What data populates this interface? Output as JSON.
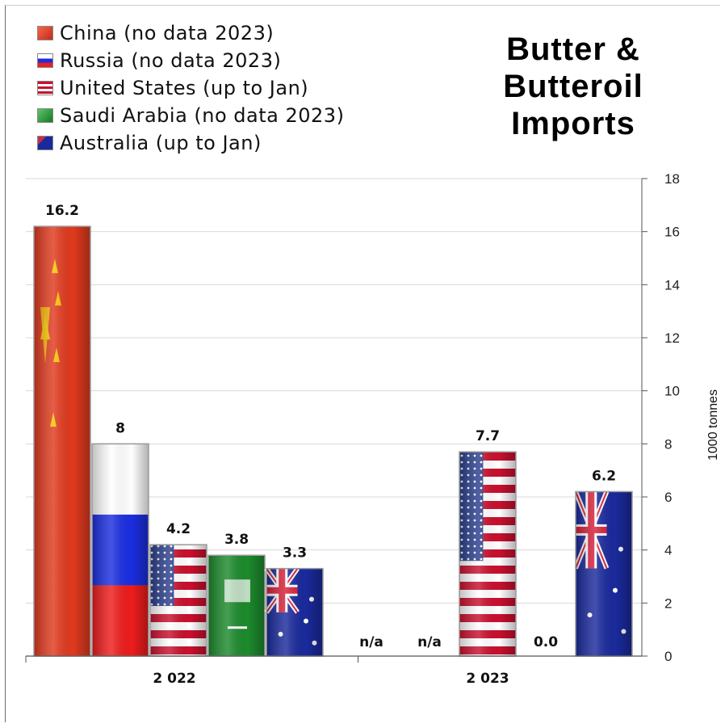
{
  "chart_data": {
    "type": "bar",
    "title": "Butter & Butteroil Imports",
    "ylabel": "1000 tonnes",
    "ylim": [
      0,
      18
    ],
    "yticks": [
      0,
      2,
      4,
      6,
      8,
      10,
      12,
      14,
      16,
      18
    ],
    "categories": [
      "2 022",
      "2 023"
    ],
    "grid": true,
    "legend_position": "top-left",
    "series": [
      {
        "name": "China (no data 2023)",
        "values": [
          16.2,
          null
        ],
        "labels": [
          "16.2",
          "n/a"
        ],
        "color": "#e03a1e",
        "flag": "china-flag-icon"
      },
      {
        "name": "Russia (no data 2023)",
        "values": [
          8,
          null
        ],
        "labels": [
          "8",
          "n/a"
        ],
        "color": "#1b2ee0",
        "flag": "russia-flag-icon"
      },
      {
        "name": "United States (up to Jan)",
        "values": [
          4.2,
          7.7
        ],
        "labels": [
          "4.2",
          "7.7"
        ],
        "color": "#c8102e",
        "flag": "usa-flag-icon"
      },
      {
        "name": "Saudi Arabia (no data 2023)",
        "values": [
          3.8,
          0.0
        ],
        "labels": [
          "3.8",
          "0.0"
        ],
        "color": "#1c8a2c",
        "flag": "saudi-flag-icon"
      },
      {
        "name": "Australia (up to Jan)",
        "values": [
          3.3,
          6.2
        ],
        "labels": [
          "3.3",
          "6.2"
        ],
        "color": "#1a2a9c",
        "flag": "australia-flag-icon"
      }
    ]
  }
}
